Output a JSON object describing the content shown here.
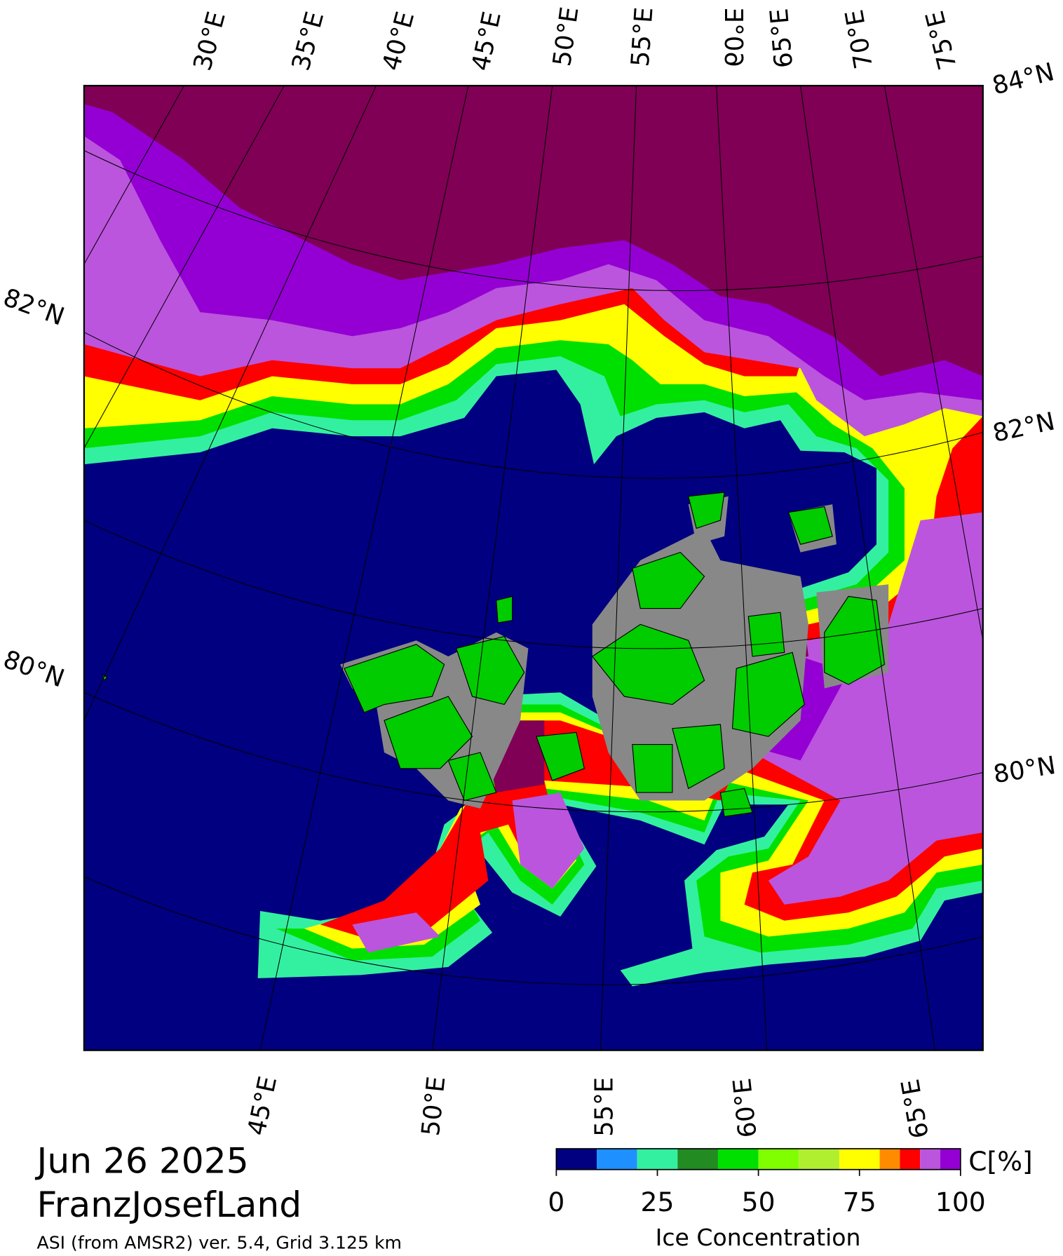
{
  "map": {
    "top_labels": [
      "30°E",
      "35°E",
      "40°E",
      "45°E",
      "50°E",
      "55°E",
      "60°E",
      "65°E",
      "70°E",
      "75°E"
    ],
    "bottom_labels": [
      "45°E",
      "50°E",
      "55°E",
      "60°E",
      "65°E"
    ],
    "left_labels": [
      "82°N",
      "80°N"
    ],
    "right_labels": [
      "84°N",
      "82°N",
      "80°N"
    ]
  },
  "footer": {
    "date": "Jun 26 2025",
    "region": "FranzJosefLand",
    "source": "ASI (from AMSR2) ver. 5.4,  Grid 3.125 km"
  },
  "legend": {
    "title": "Ice Concentration",
    "unit": "C[%]",
    "lim": [
      0,
      100
    ],
    "ticks": [
      0,
      25,
      50,
      75,
      100
    ],
    "bins": [
      0,
      10,
      20,
      30,
      40,
      50,
      60,
      70,
      80,
      85,
      90,
      95,
      100
    ],
    "colors": [
      "#000080",
      "#1e90ff",
      "#33f0a0",
      "#228b22",
      "#00e000",
      "#80ff00",
      "#b0ee30",
      "#ffff00",
      "#ff8c00",
      "#ff0000",
      "#bb55dd",
      "#9400d3"
    ]
  }
}
